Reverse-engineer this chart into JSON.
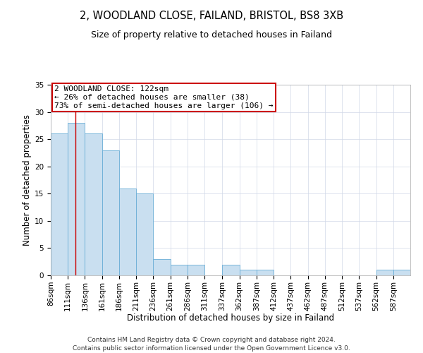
{
  "title": "2, WOODLAND CLOSE, FAILAND, BRISTOL, BS8 3XB",
  "subtitle": "Size of property relative to detached houses in Failand",
  "xlabel": "Distribution of detached houses by size in Failand",
  "ylabel": "Number of detached properties",
  "bin_labels": [
    "86sqm",
    "111sqm",
    "136sqm",
    "161sqm",
    "186sqm",
    "211sqm",
    "236sqm",
    "261sqm",
    "286sqm",
    "311sqm",
    "337sqm",
    "362sqm",
    "387sqm",
    "412sqm",
    "437sqm",
    "462sqm",
    "487sqm",
    "512sqm",
    "537sqm",
    "562sqm",
    "587sqm"
  ],
  "bin_left_edges": [
    86,
    111,
    136,
    161,
    186,
    211,
    236,
    261,
    286,
    311,
    337,
    362,
    387,
    412,
    437,
    462,
    487,
    512,
    537,
    562,
    587
  ],
  "bin_width": 25,
  "values": [
    26,
    28,
    26,
    23,
    16,
    15,
    3,
    2,
    2,
    0,
    2,
    1,
    1,
    0,
    0,
    0,
    0,
    0,
    0,
    1,
    1
  ],
  "bar_color": "#c9dff0",
  "bar_edge_color": "#6aaed6",
  "property_line_x": 122,
  "property_line_color": "#cc0000",
  "annotation_title": "2 WOODLAND CLOSE: 122sqm",
  "annotation_line1": "← 26% of detached houses are smaller (38)",
  "annotation_line2": "73% of semi-detached houses are larger (106) →",
  "annotation_box_color": "#ffffff",
  "annotation_box_edge_color": "#cc0000",
  "ylim": [
    0,
    35
  ],
  "yticks": [
    0,
    5,
    10,
    15,
    20,
    25,
    30,
    35
  ],
  "footer_line1": "Contains HM Land Registry data © Crown copyright and database right 2024.",
  "footer_line2": "Contains public sector information licensed under the Open Government Licence v3.0.",
  "background_color": "#ffffff",
  "grid_color": "#d0d8e8",
  "title_fontsize": 10.5,
  "subtitle_fontsize": 9,
  "axis_label_fontsize": 8.5,
  "tick_fontsize": 7.5,
  "annotation_fontsize": 8,
  "footer_fontsize": 6.5
}
